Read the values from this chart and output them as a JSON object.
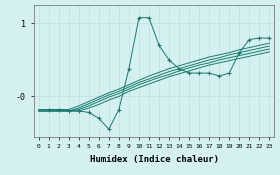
{
  "xlabel": "Humidex (Indice chaleur)",
  "background_color": "#d4f0f0",
  "grid_color": "#c0e0e0",
  "line_color": "#1a7a6e",
  "x_ticks": [
    0,
    1,
    2,
    3,
    4,
    5,
    6,
    7,
    8,
    9,
    10,
    11,
    12,
    13,
    14,
    15,
    16,
    17,
    18,
    19,
    20,
    21,
    22,
    23
  ],
  "ylim": [
    -0.55,
    1.25
  ],
  "xlim": [
    -0.5,
    23.5
  ],
  "ytick_vals": [
    1.0,
    -0.0
  ],
  "ytick_labels": [
    "1",
    "-0"
  ],
  "lines": [
    [
      null,
      -0.18,
      -0.18,
      -0.2,
      -0.2,
      -0.22,
      -0.3,
      -0.45,
      -0.18,
      0.38,
      1.08,
      1.08,
      0.7,
      0.5,
      0.38,
      0.32,
      0.32,
      0.32,
      0.28,
      0.32,
      0.6,
      0.78,
      0.8,
      0.8
    ],
    [
      -0.18,
      -0.18,
      -0.18,
      -0.18,
      -0.13,
      -0.07,
      -0.01,
      0.05,
      0.1,
      0.16,
      0.22,
      0.28,
      0.33,
      0.38,
      0.42,
      0.46,
      0.5,
      0.54,
      0.57,
      0.6,
      0.64,
      0.67,
      0.7,
      0.73
    ],
    [
      -0.2,
      -0.2,
      -0.2,
      -0.2,
      -0.16,
      -0.1,
      -0.04,
      0.02,
      0.07,
      0.13,
      0.19,
      0.24,
      0.29,
      0.34,
      0.38,
      0.42,
      0.46,
      0.5,
      0.53,
      0.57,
      0.6,
      0.63,
      0.66,
      0.69
    ],
    [
      -0.2,
      -0.2,
      -0.2,
      -0.2,
      -0.18,
      -0.13,
      -0.07,
      -0.01,
      0.04,
      0.1,
      0.16,
      0.21,
      0.26,
      0.3,
      0.35,
      0.39,
      0.43,
      0.46,
      0.5,
      0.53,
      0.56,
      0.59,
      0.62,
      0.65
    ],
    [
      -0.2,
      -0.2,
      -0.2,
      -0.2,
      -0.2,
      -0.16,
      -0.11,
      -0.05,
      0.0,
      0.07,
      0.12,
      0.17,
      0.22,
      0.27,
      0.31,
      0.35,
      0.39,
      0.43,
      0.46,
      0.49,
      0.52,
      0.55,
      0.58,
      0.61
    ]
  ]
}
